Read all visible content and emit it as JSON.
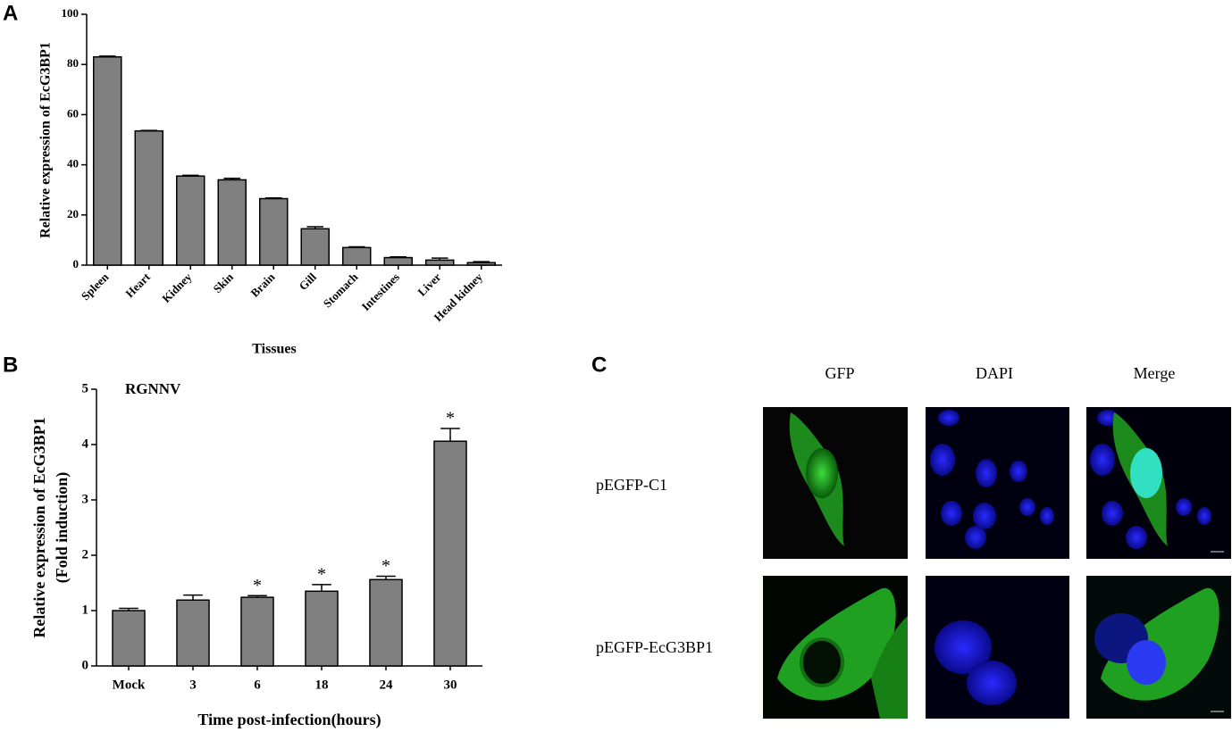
{
  "chart_data": [
    {
      "type": "bar",
      "panel": "A",
      "x_label": "Tissues",
      "y_label": "Relative expression of EcG3BP1",
      "categories": [
        "Spleen",
        "Heart",
        "Kidney",
        "Skin",
        "Brain",
        "Gill",
        "Stomach",
        "Intestines",
        "Liver",
        "Head kidney"
      ],
      "values": [
        83,
        53.5,
        35.5,
        34,
        26.5,
        14.5,
        7,
        3,
        2,
        1
      ],
      "errors": [
        0.3,
        0.2,
        0.3,
        0.6,
        0.3,
        0.8,
        0.3,
        0.3,
        0.8,
        0.4
      ],
      "color": "#808080",
      "ylim": [
        0,
        100
      ],
      "yticks": [
        0,
        20,
        40,
        60,
        80,
        100
      ]
    },
    {
      "type": "bar",
      "panel": "B",
      "annotation": "RGNNV",
      "x_label": "Time post-infection(hours)",
      "y_label": [
        "Relative expression of EcG3BP1",
        "(Fold induction)"
      ],
      "categories": [
        "Mock",
        "3",
        "6",
        "18",
        "24",
        "30"
      ],
      "values": [
        1.0,
        1.19,
        1.24,
        1.35,
        1.56,
        4.06
      ],
      "errors": [
        0.04,
        0.09,
        0.03,
        0.12,
        0.06,
        0.23
      ],
      "significance": [
        null,
        null,
        "*",
        "*",
        "*",
        "*"
      ],
      "color": "#808080",
      "ylim": [
        0,
        5
      ],
      "yticks": [
        0,
        1,
        2,
        3,
        4,
        5
      ]
    }
  ],
  "panel_c": {
    "label": "C",
    "columns": [
      "GFP",
      "DAPI",
      "Merge"
    ],
    "rows": [
      "pEGFP-C1",
      "pEGFP-EcG3BP1"
    ]
  }
}
